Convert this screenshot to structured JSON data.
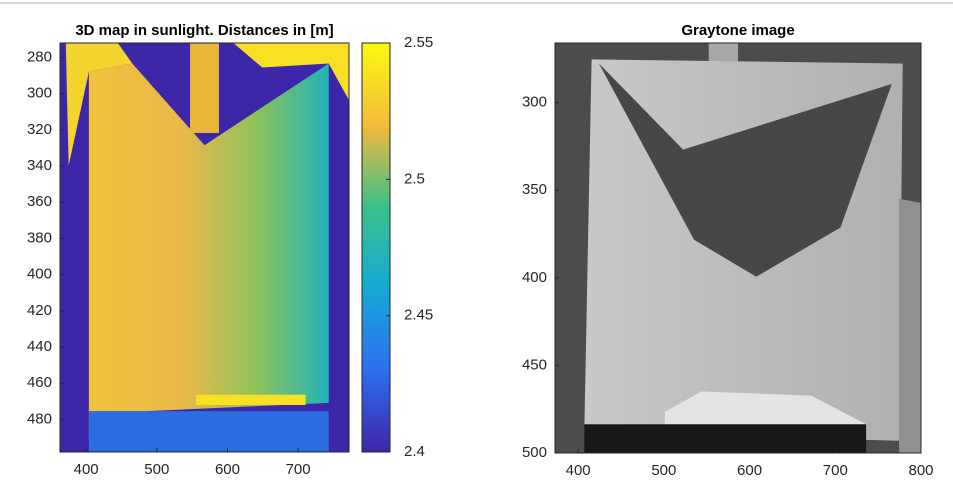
{
  "chart_data": [
    {
      "type": "image",
      "title": "3D map in sunlight. Distances in [m]",
      "colormap": "parula",
      "xlim": [
        363,
        772
      ],
      "xticks": [
        400,
        500,
        600,
        700
      ],
      "ylim": [
        272,
        498
      ],
      "yticks": [
        280,
        300,
        320,
        340,
        360,
        380,
        400,
        420,
        440,
        460,
        480
      ],
      "y_reversed": true,
      "colorbar": {
        "lim": [
          2.4,
          2.55
        ],
        "ticks": [
          2.4,
          2.45,
          2.5,
          2.55
        ]
      }
    },
    {
      "type": "image",
      "title": "Graytone image",
      "colormap": "gray",
      "xlim": [
        373,
        800
      ],
      "xticks": [
        400,
        500,
        600,
        700,
        800
      ],
      "ylim": [
        266,
        500
      ],
      "yticks": [
        300,
        350,
        400,
        450,
        500
      ],
      "y_reversed": true
    }
  ]
}
